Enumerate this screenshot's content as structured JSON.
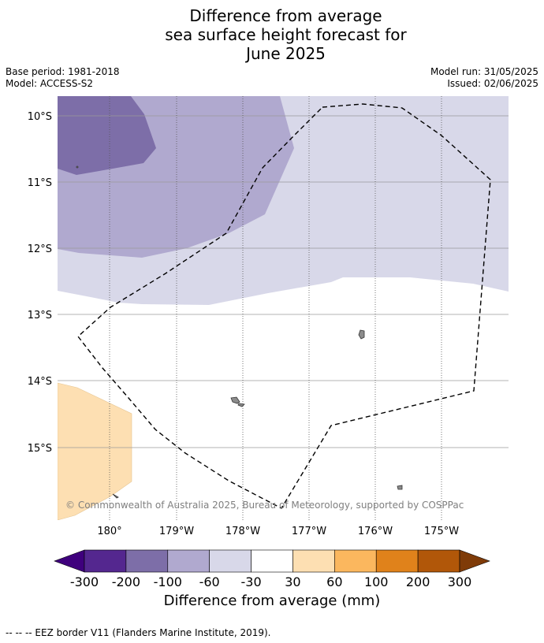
{
  "title_lines": [
    "Difference from average",
    "sea surface height forecast for",
    "June 2025"
  ],
  "meta": {
    "base_period": "Base period: 1981-2018",
    "model": "Model: ACCESS-S2",
    "model_run": "Model run: 31/05/2025",
    "issued": "Issued: 02/06/2025"
  },
  "map": {
    "lat_labels": [
      "10°S",
      "11°S",
      "12°S",
      "13°S",
      "14°S",
      "15°S"
    ],
    "lon_labels": [
      "180°",
      "179°W",
      "178°W",
      "177°W",
      "176°W",
      "175°W"
    ],
    "copyright": "© Commonwealth of Australia 2025, Bureau of Meteorology, supported by COSPPac",
    "eez_style": "black dashed line"
  },
  "colorbar": {
    "ticks": [
      "-300",
      "-200",
      "-100",
      "-60",
      "-30",
      "30",
      "60",
      "100",
      "200",
      "300"
    ],
    "colors": [
      "#3f007d",
      "#54278f",
      "#7d6ea8",
      "#b0a9cf",
      "#d8d8e9",
      "#ffffff",
      "#fddfb2",
      "#fbb75e",
      "#e0821b",
      "#b15709",
      "#7f3b08"
    ],
    "title": "Difference from average (mm)"
  },
  "footer": "--  --  -- EEZ border V11 (Flanders Marine Institute, 2019)."
}
